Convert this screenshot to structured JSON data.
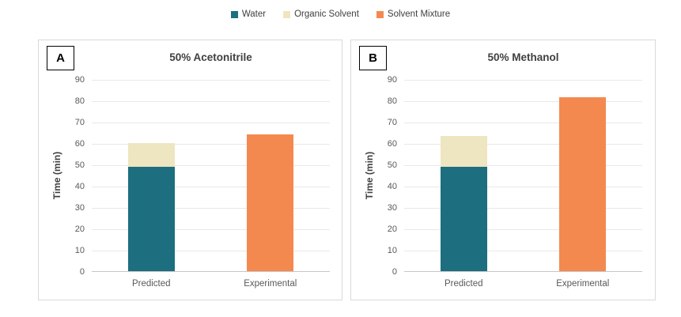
{
  "legend": {
    "position": "top-center",
    "items": [
      {
        "label": "Water",
        "color": "#1D6E7F"
      },
      {
        "label": "Organic Solvent",
        "color": "#EEE5C1"
      },
      {
        "label": "Solvent Mixture",
        "color": "#F48950"
      }
    ]
  },
  "chart_data": [
    {
      "type": "bar",
      "stacked": true,
      "panel_label": "A",
      "title": "50% Acetonitrile",
      "xlabel": "",
      "ylabel": "Time (min)",
      "categories": [
        "Predicted",
        "Experimental"
      ],
      "series": [
        {
          "name": "Water",
          "color": "#1D6E7F",
          "values": [
            49,
            0
          ]
        },
        {
          "name": "Organic Solvent",
          "color": "#EEE5C1",
          "values": [
            11,
            0
          ]
        },
        {
          "name": "Solvent Mixture",
          "color": "#F48950",
          "values": [
            0,
            64
          ]
        }
      ],
      "ylim": [
        0,
        90
      ],
      "yticks": [
        0,
        10,
        20,
        30,
        40,
        50,
        60,
        70,
        80,
        90
      ],
      "grid": "horizontal"
    },
    {
      "type": "bar",
      "stacked": true,
      "panel_label": "B",
      "title": "50% Methanol",
      "xlabel": "",
      "ylabel": "Time (min)",
      "categories": [
        "Predicted",
        "Experimental"
      ],
      "series": [
        {
          "name": "Water",
          "color": "#1D6E7F",
          "values": [
            49,
            0
          ]
        },
        {
          "name": "Organic Solvent",
          "color": "#EEE5C1",
          "values": [
            14.5,
            0
          ]
        },
        {
          "name": "Solvent Mixture",
          "color": "#F48950",
          "values": [
            0,
            81.5
          ]
        }
      ],
      "ylim": [
        0,
        90
      ],
      "yticks": [
        0,
        10,
        20,
        30,
        40,
        50,
        60,
        70,
        80,
        90
      ],
      "grid": "horizontal"
    }
  ]
}
